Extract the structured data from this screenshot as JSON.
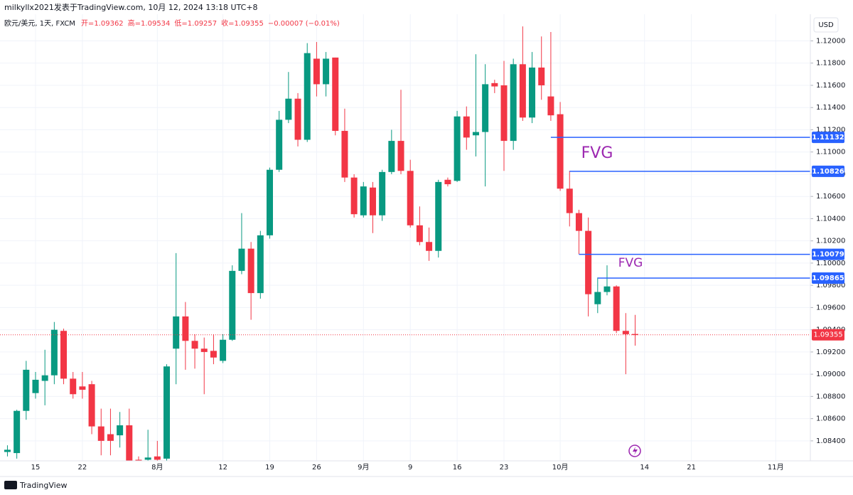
{
  "header": {
    "byline": "milkyllx2021发表于TradingView.com,  10月 12, 2024 13:18 UTC+8",
    "legend": {
      "symbol": "欧元/美元, 1天, FXCM",
      "open": "开=1.09362",
      "high": "高=1.09534",
      "low": "低=1.09257",
      "close": "收=1.09355",
      "change": "−0.00007 (−0.01%)"
    },
    "currency": "USD"
  },
  "footer": {
    "brand": "TradingView"
  },
  "chart_data": {
    "type": "candlestick",
    "up_color": "#089981",
    "down_color": "#f23645",
    "grid": true,
    "categories": [
      null,
      null,
      null,
      "15",
      null,
      null,
      null,
      null,
      "22",
      null,
      null,
      null,
      null,
      null,
      null,
      null,
      "8月",
      null,
      null,
      null,
      null,
      null,
      null,
      "12",
      null,
      null,
      null,
      null,
      "19",
      null,
      null,
      null,
      null,
      "26",
      null,
      null,
      null,
      null,
      "9月",
      null,
      null,
      null,
      null,
      "9",
      null,
      null,
      null,
      null,
      "16",
      null,
      null,
      null,
      null,
      "23",
      null,
      null,
      null,
      null,
      null,
      "10月",
      null,
      null,
      null,
      null,
      null,
      null,
      null,
      null,
      "14",
      null,
      null,
      null,
      null,
      "21",
      null,
      null,
      null,
      null,
      null,
      null,
      null,
      null,
      "11月",
      null,
      null,
      null
    ],
    "open": [
      1.083,
      1.0829,
      1.0867,
      1.0883,
      1.0894,
      1.0899,
      1.0939,
      1.0896,
      1.0889,
      1.0891,
      1.0853,
      1.0846,
      1.0845,
      1.0854,
      1.0823,
      1.0823,
      1.0826,
      1.0824,
      1.0923,
      1.0952,
      1.093,
      1.0923,
      1.0921,
      1.0912,
      1.0931,
      1.0993,
      1.1013,
      1.0973,
      1.1025,
      1.1084,
      1.1129,
      1.1148,
      1.1111,
      1.1184,
      1.1161,
      1.1185,
      1.1119,
      1.1077,
      1.1043,
      1.1068,
      1.1043,
      1.1082,
      1.111,
      1.1083,
      1.1034,
      1.1019,
      1.1011,
      1.1075,
      1.1074,
      1.1132,
      1.1115,
      1.1118,
      1.1162,
      1.116,
      1.111,
      1.1179,
      1.1131,
      1.1176,
      1.115,
      1.1134,
      1.1067,
      1.1045,
      1.1029,
      1.0963,
      1.0974,
      1.0979,
      1.0939,
      1.09362,
      null,
      null,
      null,
      null,
      null,
      null,
      null,
      null,
      null,
      null,
      null,
      null,
      null,
      null,
      null,
      null,
      null,
      null
    ],
    "high": [
      1.0836,
      1.0868,
      1.0912,
      1.0902,
      1.0922,
      1.0947,
      1.0941,
      1.0902,
      1.0902,
      1.0894,
      1.0869,
      1.0869,
      1.0866,
      1.0869,
      1.0826,
      1.085,
      1.084,
      1.0909,
      1.1009,
      1.0965,
      1.0936,
      1.0933,
      1.0936,
      1.0936,
      1.0998,
      1.1045,
      1.1019,
      1.1029,
      1.1086,
      1.1137,
      1.1172,
      1.1153,
      1.1198,
      1.1199,
      1.119,
      1.1185,
      1.1139,
      1.108,
      1.1073,
      1.1073,
      1.1084,
      1.112,
      1.1156,
      1.1093,
      1.1051,
      1.1032,
      1.1075,
      1.1077,
      1.1137,
      1.1141,
      1.1188,
      1.1179,
      1.1165,
      1.1182,
      1.1184,
      1.1213,
      1.119,
      1.1204,
      1.1208,
      1.1145,
      1.1083,
      1.1048,
      1.1041,
      1.0987,
      1.0998,
      1.098,
      1.0955,
      1.09534,
      null,
      null,
      null,
      null,
      null,
      null,
      null,
      null,
      null,
      null,
      null,
      null,
      null,
      null,
      null,
      null,
      null,
      null
    ],
    "low": [
      1.0826,
      1.0824,
      1.0859,
      1.0878,
      1.0872,
      1.0891,
      1.0891,
      1.0878,
      1.0878,
      1.0846,
      1.0827,
      1.0827,
      1.0834,
      1.0818,
      1.0815,
      1.0815,
      1.0815,
      1.082,
      1.0891,
      1.0904,
      1.0905,
      1.0882,
      1.0909,
      1.091,
      1.093,
      1.099,
      1.0949,
      1.0968,
      1.1022,
      1.1082,
      1.1126,
      1.1105,
      1.1109,
      1.115,
      1.115,
      1.1115,
      1.1073,
      1.1041,
      1.1041,
      1.1027,
      1.1038,
      1.108,
      1.108,
      1.1032,
      1.1016,
      1.1002,
      1.1005,
      1.1069,
      1.1073,
      1.1102,
      1.1096,
      1.1069,
      1.1153,
      1.1083,
      1.1102,
      1.1128,
      1.1126,
      1.1147,
      1.1128,
      1.1065,
      1.1033,
      1.1008,
      1.0952,
      1.0955,
      1.0971,
      1.0937,
      1.09,
      1.09257,
      null,
      null,
      null,
      null,
      null,
      null,
      null,
      null,
      null,
      null,
      null,
      null,
      null,
      null,
      null,
      null,
      null,
      null
    ],
    "close": [
      1.0832,
      1.0867,
      1.0904,
      1.0895,
      1.0899,
      1.094,
      1.0896,
      1.0882,
      1.0886,
      1.0853,
      1.084,
      1.084,
      1.0854,
      1.0822,
      1.0821,
      1.0825,
      1.0823,
      1.0907,
      1.0952,
      1.093,
      1.0923,
      1.092,
      1.0915,
      1.0931,
      1.0993,
      1.1013,
      1.0973,
      1.1025,
      1.1084,
      1.1129,
      1.1148,
      1.1111,
      1.1189,
      1.1161,
      1.1184,
      1.1119,
      1.1077,
      1.1044,
      1.1069,
      1.1043,
      1.1082,
      1.111,
      1.1083,
      1.1034,
      1.1019,
      1.1011,
      1.1073,
      1.1071,
      1.1132,
      1.1113,
      1.1118,
      1.1161,
      1.1159,
      1.111,
      1.1179,
      1.1131,
      1.1176,
      1.116,
      1.1133,
      1.1067,
      1.1045,
      1.1029,
      1.0972,
      1.0974,
      1.0979,
      1.0939,
      1.0936,
      1.09355,
      null,
      null,
      null,
      null,
      null,
      null,
      null,
      null,
      null,
      null,
      null,
      null,
      null,
      null,
      null,
      null,
      null,
      null
    ],
    "ylim": [
      1.0822,
      1.1224
    ],
    "yticks": [
      {
        "value": 1.084,
        "label": "1.08400"
      },
      {
        "value": 1.086,
        "label": "1.08600"
      },
      {
        "value": 1.088,
        "label": "1.08800"
      },
      {
        "value": 1.09,
        "label": "1.09000"
      },
      {
        "value": 1.092,
        "label": "1.09200"
      },
      {
        "value": 1.094,
        "label": "1.09400"
      },
      {
        "value": 1.096,
        "label": "1.09600"
      },
      {
        "value": 1.098,
        "label": "1.09800"
      },
      {
        "value": 1.1,
        "label": "1.10000"
      },
      {
        "value": 1.102,
        "label": "1.10200"
      },
      {
        "value": 1.104,
        "label": "1.10400"
      },
      {
        "value": 1.106,
        "label": "1.10600"
      },
      {
        "value": 1.108,
        "label": "1.10800"
      },
      {
        "value": 1.11,
        "label": "1.11000"
      },
      {
        "value": 1.112,
        "label": "1.11200"
      },
      {
        "value": 1.114,
        "label": "1.11400"
      },
      {
        "value": 1.116,
        "label": "1.11600"
      },
      {
        "value": 1.118,
        "label": "1.11800"
      },
      {
        "value": 1.12,
        "label": "1.12000"
      }
    ],
    "hlines": [
      {
        "value": 1.11132,
        "start": 58,
        "color": "#2962ff"
      },
      {
        "value": 1.10826,
        "start": 60,
        "color": "#2962ff"
      },
      {
        "value": 1.10079,
        "start": 61,
        "color": "#2962ff"
      },
      {
        "value": 1.09865,
        "start": 63,
        "color": "#2962ff"
      }
    ],
    "last_price": {
      "value": 1.09355,
      "color": "#f23645"
    },
    "annotations": [
      {
        "text": "FVG",
        "color": "#9c27b0"
      },
      {
        "text": "FVG",
        "color": "#9c27b0"
      }
    ]
  }
}
